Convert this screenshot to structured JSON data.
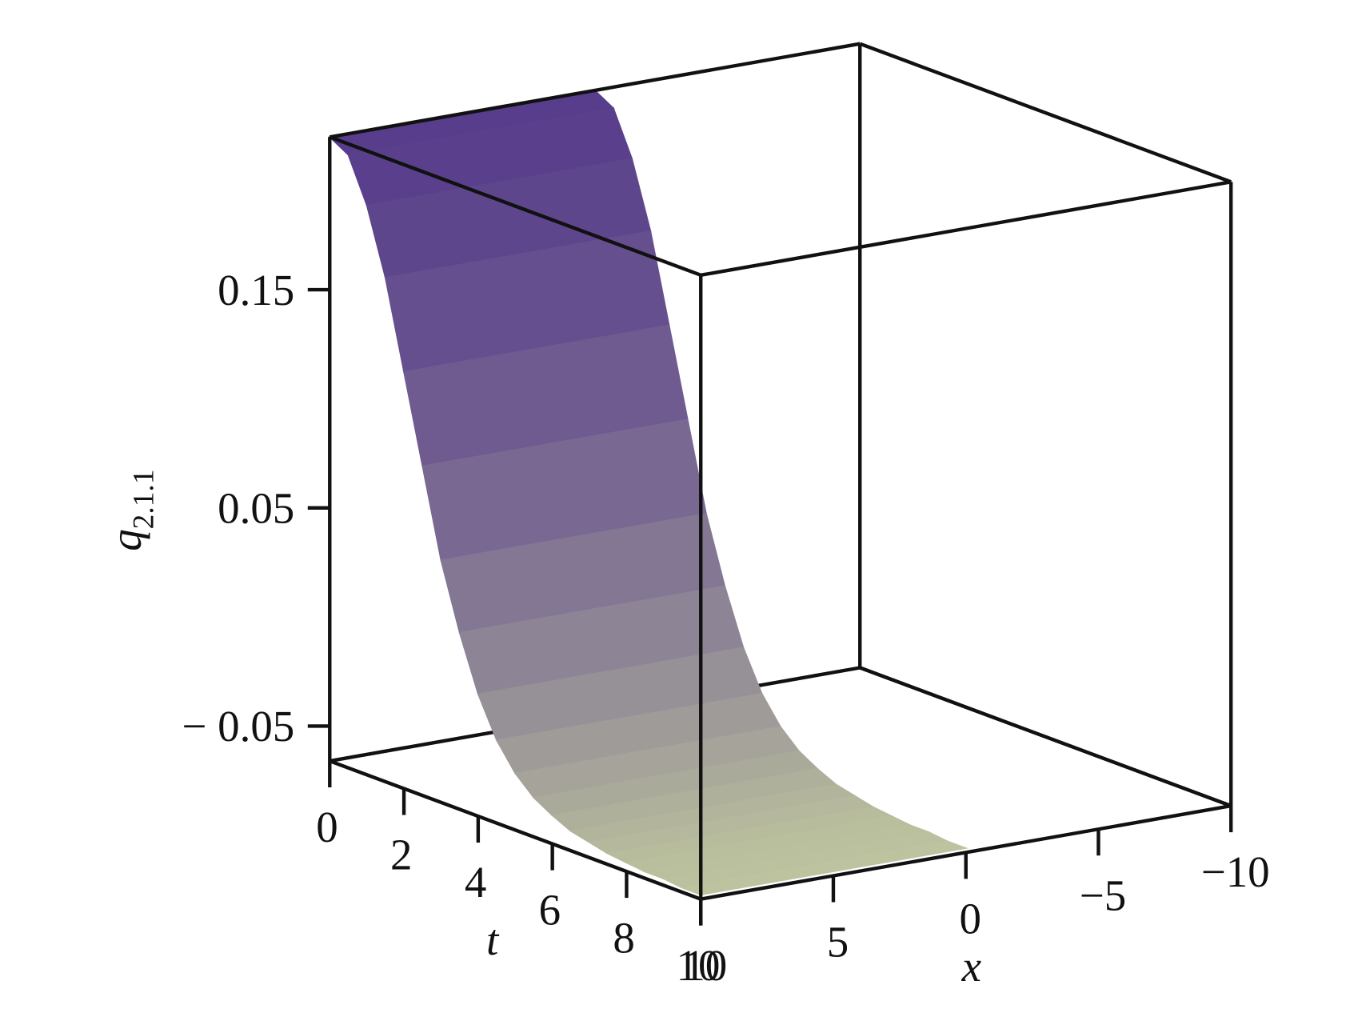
{
  "chart_data": {
    "type": "surface3d",
    "xlabel": "x",
    "tlabel": "t",
    "zlabel": {
      "text": "q",
      "subscript": "2.1.1"
    },
    "xlim": [
      -10,
      10
    ],
    "tlim": [
      0,
      10
    ],
    "zlim": [
      -0.066,
      0.22
    ],
    "xticks": [
      {
        "value": -10,
        "label": "−10"
      },
      {
        "value": -5,
        "label": "−5"
      },
      0,
      5,
      10
    ],
    "tticks": [
      0,
      2,
      4,
      6,
      8,
      10
    ],
    "zticks": [
      {
        "value": -0.05,
        "label": "− 0.05"
      },
      0.05,
      0.15
    ],
    "surface": {
      "x": [
        0,
        10
      ],
      "t": [
        0,
        0.5,
        1,
        1.5,
        2,
        2.5,
        3,
        3.5,
        4,
        4.5,
        5,
        5.5,
        6,
        6.5,
        7,
        7.5,
        8,
        8.5,
        9,
        9.5,
        10
      ],
      "z": [
        0.22,
        0.215,
        0.195,
        0.165,
        0.125,
        0.085,
        0.045,
        0.015,
        -0.01,
        -0.028,
        -0.04,
        -0.048,
        -0.053,
        -0.057,
        -0.059,
        -0.061,
        -0.062,
        -0.063,
        -0.063,
        -0.064,
        -0.064
      ],
      "colors": [
        "#573c8c",
        "#c9d3a0"
      ]
    }
  }
}
